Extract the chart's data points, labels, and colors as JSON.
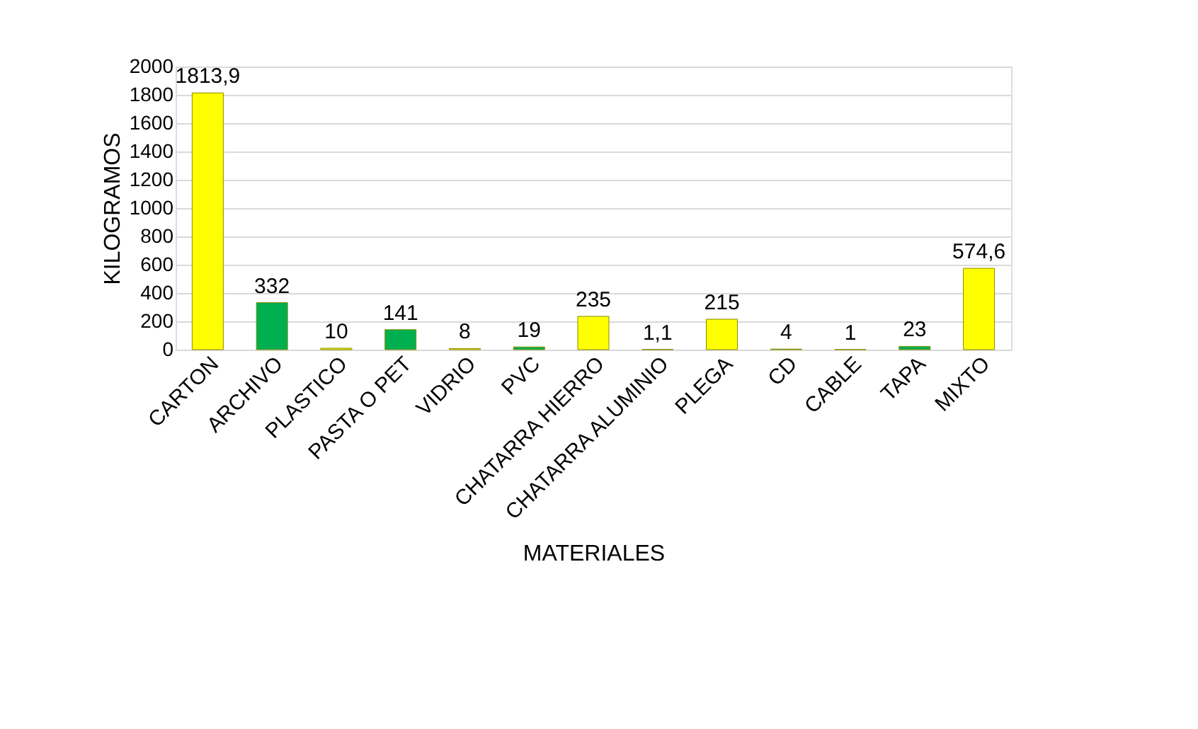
{
  "chart_data": {
    "type": "bar",
    "xlabel": "MATERIALES",
    "ylabel": "KILOGRAMOS",
    "categories": [
      "CARTON",
      "ARCHIVO",
      "PLASTICO",
      "PASTA O PET",
      "VIDRIO",
      "PVC",
      "CHATARRA HIERRO",
      "CHATARRA ALUMINIO",
      "PLEGA",
      "CD",
      "CABLE",
      "TAPA",
      "MIXTO"
    ],
    "values": [
      1813.9,
      332,
      10,
      141,
      8,
      19,
      235,
      1.1,
      215,
      4,
      1,
      23,
      574.6
    ],
    "colors": [
      "#ffff00",
      "#00b050",
      "#ffff00",
      "#00b050",
      "#ffff00",
      "#00b050",
      "#ffff00",
      "#00b050",
      "#ffff00",
      "#00b050",
      "#ffff00",
      "#00b050",
      "#ffff00"
    ],
    "value_labels": [
      "1813,9",
      "332",
      "10",
      "141",
      "8",
      "19",
      "235",
      "1,1",
      "215",
      "4",
      "1",
      "23",
      "574,6"
    ],
    "ylim": [
      0,
      2000
    ],
    "yticks": [
      0,
      200,
      400,
      600,
      800,
      1000,
      1200,
      1400,
      1600,
      1800,
      2000
    ],
    "grid": "y"
  }
}
